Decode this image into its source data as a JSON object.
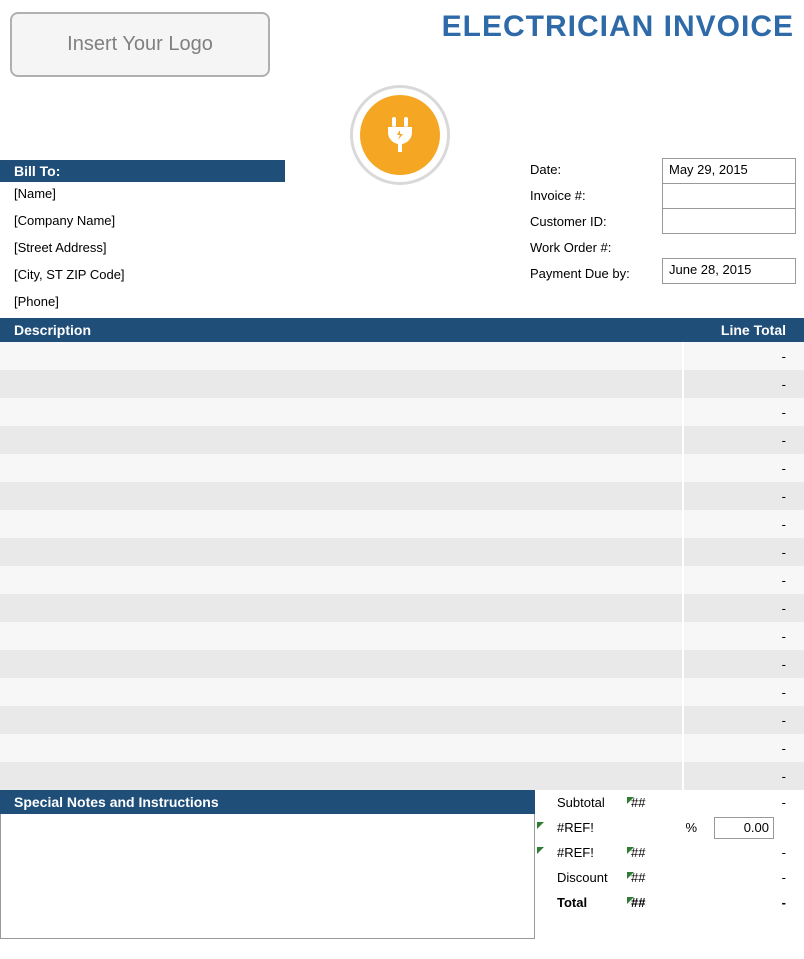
{
  "colors": {
    "brand_blue": "#1f4e79",
    "title_blue": "#2f6aa8",
    "badge_orange": "#f5a623",
    "row_alt": "#e9e9e9",
    "row_base": "#f7f7f7",
    "grey_text": "#808080"
  },
  "logo_placeholder": "Insert Your Logo",
  "title": "ELECTRICIAN INVOICE",
  "bill_to": {
    "header": "Bill To:",
    "fields": [
      "[Name]",
      "[Company Name]",
      "[Street Address]",
      "[City, ST  ZIP Code]",
      "[Phone]"
    ]
  },
  "meta": {
    "labels": [
      "Date:",
      "Invoice #:",
      "Customer ID:",
      "Work Order #:",
      "Payment Due by:"
    ],
    "values": [
      "May 29, 2015",
      "",
      "",
      "",
      "June 28, 2015"
    ]
  },
  "items": {
    "header_description": "Description",
    "header_total": "Line Total",
    "rows": [
      {
        "desc": "",
        "total": "-"
      },
      {
        "desc": "",
        "total": "-"
      },
      {
        "desc": "",
        "total": "-"
      },
      {
        "desc": "",
        "total": "-"
      },
      {
        "desc": "",
        "total": "-"
      },
      {
        "desc": "",
        "total": "-"
      },
      {
        "desc": "",
        "total": "-"
      },
      {
        "desc": "",
        "total": "-"
      },
      {
        "desc": "",
        "total": "-"
      },
      {
        "desc": "",
        "total": "-"
      },
      {
        "desc": "",
        "total": "-"
      },
      {
        "desc": "",
        "total": "-"
      },
      {
        "desc": "",
        "total": "-"
      },
      {
        "desc": "",
        "total": "-"
      },
      {
        "desc": "",
        "total": "-"
      },
      {
        "desc": "",
        "total": "-"
      }
    ]
  },
  "notes_header": "Special Notes and Instructions",
  "totals": {
    "subtotal_label": "Subtotal",
    "subtotal_a": "##",
    "subtotal_b": "-",
    "ref1_label": "#REF!",
    "pct_label": "%",
    "pct_value": "0.00",
    "ref2_label": "#REF!",
    "ref2_a": "##",
    "ref2_b": "-",
    "discount_label": "Discount",
    "discount_a": "##",
    "discount_b": "-",
    "total_label": "Total",
    "total_a": "##",
    "total_b": "-"
  }
}
